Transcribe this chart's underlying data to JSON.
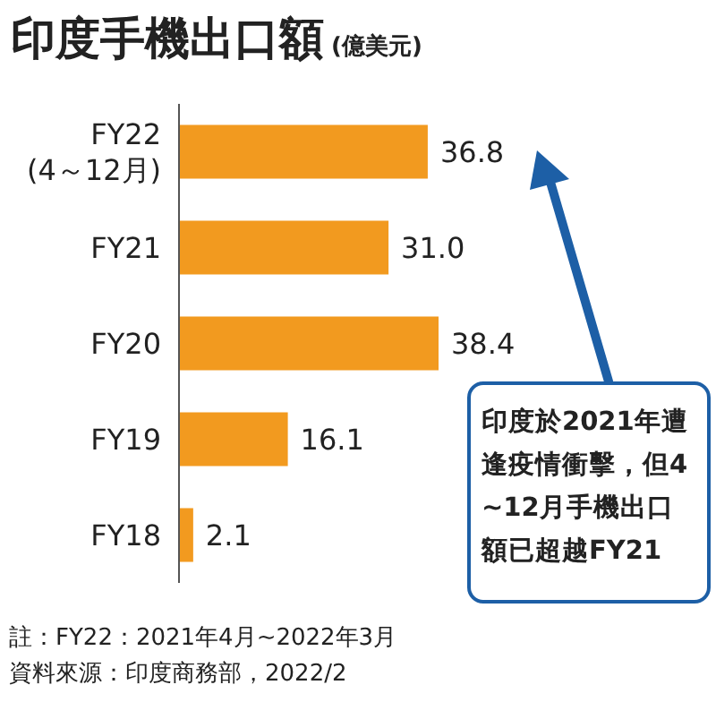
{
  "chart_data": {
    "type": "bar",
    "orientation": "horizontal",
    "title": "印度手機出口額",
    "subtitle": "(億美元)",
    "categories": [
      "FY22\n(4～12月)",
      "FY21",
      "FY20",
      "FY19",
      "FY18"
    ],
    "values": [
      36.8,
      31.0,
      38.4,
      16.1,
      2.1
    ],
    "value_labels": [
      "36.8",
      "31.0",
      "38.4",
      "16.1",
      "2.1"
    ],
    "color": "#f29a1f",
    "annotations": [
      "印度於2021年遭逢疫情衝擊，但4~12月手機出口額已超越FY21",
      "註：FY22：2021年4月~2022年3月",
      "資料來源：印度商務部，2022/2"
    ]
  }
}
